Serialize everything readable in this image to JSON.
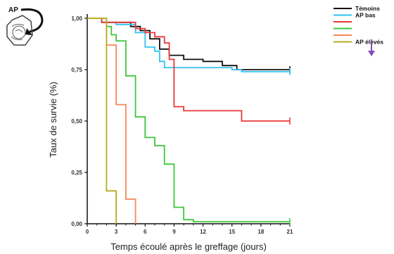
{
  "chart_data": {
    "type": "line",
    "step": true,
    "xlabel": "Temps écoulé après le greffage (jours)",
    "ylabel": "Taux de survie (%)",
    "xlim": [
      0,
      21
    ],
    "ylim": [
      0,
      1
    ],
    "x_ticks": [
      0,
      3,
      6,
      9,
      12,
      15,
      18,
      21
    ],
    "x_tick_labels": [
      "0",
      "3",
      "6",
      "9",
      "12",
      "15",
      "18",
      "21"
    ],
    "y_ticks": [
      0,
      0.25,
      0.5,
      0.75,
      1
    ],
    "y_tick_labels": [
      "0,00",
      "0,25",
      "0,50",
      "0,75",
      "1,00"
    ],
    "grid": false,
    "legend_position": "top-right",
    "series": [
      {
        "name": "Témoins",
        "color": "#111111",
        "points": [
          [
            0,
            1
          ],
          [
            1.5,
            1
          ],
          [
            1.5,
            0.98
          ],
          [
            4.5,
            0.98
          ],
          [
            4.5,
            0.96
          ],
          [
            5.5,
            0.96
          ],
          [
            5.5,
            0.94
          ],
          [
            6.5,
            0.94
          ],
          [
            6.5,
            0.9
          ],
          [
            7.5,
            0.9
          ],
          [
            7.5,
            0.85
          ],
          [
            8.5,
            0.85
          ],
          [
            8.5,
            0.82
          ],
          [
            10,
            0.82
          ],
          [
            10,
            0.8
          ],
          [
            12,
            0.8
          ],
          [
            12,
            0.79
          ],
          [
            14,
            0.79
          ],
          [
            14,
            0.77
          ],
          [
            15.5,
            0.77
          ],
          [
            15.5,
            0.75
          ],
          [
            21,
            0.75
          ]
        ],
        "censored": [
          21
        ]
      },
      {
        "name": "AP bas",
        "color": "#33C3F0",
        "points": [
          [
            0,
            1
          ],
          [
            1.5,
            1
          ],
          [
            1.5,
            0.98
          ],
          [
            3,
            0.98
          ],
          [
            3,
            0.97
          ],
          [
            5,
            0.97
          ],
          [
            5,
            0.93
          ],
          [
            6,
            0.93
          ],
          [
            6,
            0.86
          ],
          [
            7,
            0.86
          ],
          [
            7,
            0.84
          ],
          [
            7.5,
            0.84
          ],
          [
            7.5,
            0.79
          ],
          [
            8,
            0.79
          ],
          [
            8,
            0.76
          ],
          [
            15,
            0.76
          ],
          [
            15,
            0.75
          ],
          [
            16,
            0.75
          ],
          [
            16,
            0.74
          ],
          [
            21,
            0.74
          ]
        ],
        "censored": [
          21
        ]
      },
      {
        "name": "",
        "color": "#E83838",
        "points": [
          [
            0,
            1
          ],
          [
            1.5,
            1
          ],
          [
            1.5,
            0.98
          ],
          [
            5,
            0.98
          ],
          [
            5,
            0.95
          ],
          [
            6,
            0.95
          ],
          [
            6,
            0.93
          ],
          [
            7,
            0.93
          ],
          [
            7,
            0.91
          ],
          [
            8,
            0.91
          ],
          [
            8,
            0.88
          ],
          [
            8.5,
            0.88
          ],
          [
            8.5,
            0.8
          ],
          [
            9,
            0.8
          ],
          [
            9,
            0.57
          ],
          [
            10,
            0.57
          ],
          [
            10,
            0.55
          ],
          [
            16,
            0.55
          ],
          [
            16,
            0.5
          ],
          [
            21,
            0.5
          ]
        ],
        "censored": [
          21
        ]
      },
      {
        "name": "",
        "color": "#3CC83C",
        "points": [
          [
            0,
            1
          ],
          [
            2,
            1
          ],
          [
            2,
            0.96
          ],
          [
            2.5,
            0.96
          ],
          [
            2.5,
            0.92
          ],
          [
            3,
            0.92
          ],
          [
            3,
            0.89
          ],
          [
            4,
            0.89
          ],
          [
            4,
            0.72
          ],
          [
            5,
            0.72
          ],
          [
            5,
            0.52
          ],
          [
            6,
            0.52
          ],
          [
            6,
            0.42
          ],
          [
            7,
            0.42
          ],
          [
            7,
            0.38
          ],
          [
            8,
            0.38
          ],
          [
            8,
            0.29
          ],
          [
            9,
            0.29
          ],
          [
            9,
            0.08
          ],
          [
            10,
            0.08
          ],
          [
            10,
            0.02
          ],
          [
            11,
            0.02
          ],
          [
            11,
            0.01
          ],
          [
            21,
            0.01
          ]
        ],
        "censored": [
          21
        ]
      },
      {
        "name": "",
        "color": "#F5885A",
        "points": [
          [
            0,
            1
          ],
          [
            2,
            1
          ],
          [
            2,
            0.87
          ],
          [
            3,
            0.87
          ],
          [
            3,
            0.58
          ],
          [
            4,
            0.58
          ],
          [
            4,
            0.12
          ],
          [
            5,
            0.12
          ],
          [
            5,
            0
          ]
        ],
        "censored": []
      },
      {
        "name": "AP élevés",
        "color": "#B5AE1E",
        "points": [
          [
            0,
            1
          ],
          [
            2,
            1
          ],
          [
            2,
            0.16
          ],
          [
            3,
            0.16
          ],
          [
            3,
            0
          ]
        ],
        "censored": []
      }
    ]
  },
  "legend": {
    "entries": [
      {
        "label": "Témoins",
        "color": "#111111"
      },
      {
        "label": "AP bas",
        "color": "#33C3F0"
      },
      {
        "label": "",
        "color": "#E83838"
      },
      {
        "label": "",
        "color": "#3CC83C"
      },
      {
        "label": "",
        "color": "#F5885A"
      },
      {
        "label": "AP élevés",
        "color": "#B5AE1E"
      }
    ],
    "arrow_color": "#7D4FB0"
  },
  "schematic": {
    "label": "AP"
  }
}
